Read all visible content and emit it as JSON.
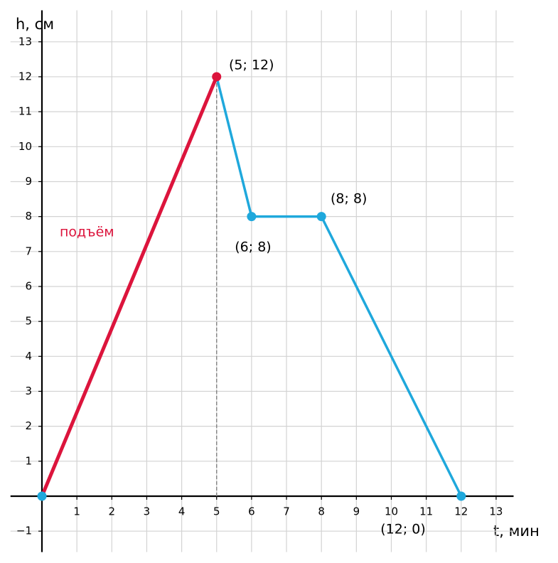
{
  "chart_data": {
    "type": "line",
    "x_label": "t, мин",
    "y_label": "h, см",
    "series": [
      {
        "name": "подъём",
        "color": "#dc143c",
        "x": [
          0,
          5
        ],
        "values": [
          0,
          12
        ],
        "marker_colors": [
          "#1fa8dc",
          "#dc143c"
        ]
      },
      {
        "color": "#1fa8dc",
        "x": [
          5,
          6,
          8,
          12
        ],
        "values": [
          12,
          8,
          8,
          0
        ],
        "marker_colors": [
          null,
          "#1fa8dc",
          "#1fa8dc",
          "#1fa8dc"
        ]
      }
    ],
    "annotations": [
      "(5; 12)",
      "(6; 8)",
      "(8; 8)",
      "(12; 0)"
    ],
    "xlim": [
      -0.9,
      13.5
    ],
    "ylim": [
      -1.6,
      13.9
    ],
    "xticks": [
      1,
      2,
      3,
      4,
      5,
      6,
      7,
      8,
      9,
      10,
      11,
      12,
      13
    ],
    "yticks": [
      {
        "value": -1,
        "label": "−1"
      },
      1,
      2,
      3,
      4,
      5,
      6,
      7,
      8,
      9,
      10,
      11,
      12,
      13
    ],
    "grid": true
  }
}
